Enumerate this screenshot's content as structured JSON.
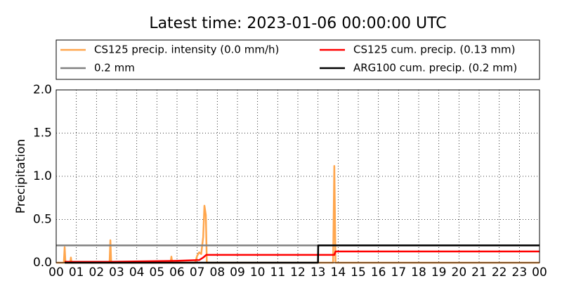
{
  "chart_data": {
    "type": "line",
    "title": "Latest time: 2023-01-06 00:00:00 UTC",
    "y_label": "Precipitation",
    "xlim": [
      0,
      24
    ],
    "xticks": [
      {
        "value": 0,
        "label": "00"
      },
      {
        "value": 1,
        "label": "01"
      },
      {
        "value": 2,
        "label": "02"
      },
      {
        "value": 3,
        "label": "03"
      },
      {
        "value": 4,
        "label": "04"
      },
      {
        "value": 5,
        "label": "05"
      },
      {
        "value": 6,
        "label": "06"
      },
      {
        "value": 7,
        "label": "07"
      },
      {
        "value": 8,
        "label": "08"
      },
      {
        "value": 9,
        "label": "09"
      },
      {
        "value": 10,
        "label": "10"
      },
      {
        "value": 11,
        "label": "11"
      },
      {
        "value": 12,
        "label": "12"
      },
      {
        "value": 13,
        "label": "13"
      },
      {
        "value": 14,
        "label": "14"
      },
      {
        "value": 15,
        "label": "15"
      },
      {
        "value": 16,
        "label": "16"
      },
      {
        "value": 17,
        "label": "17"
      },
      {
        "value": 18,
        "label": "18"
      },
      {
        "value": 19,
        "label": "19"
      },
      {
        "value": 20,
        "label": "20"
      },
      {
        "value": 21,
        "label": "21"
      },
      {
        "value": 22,
        "label": "22"
      },
      {
        "value": 23,
        "label": "23"
      },
      {
        "value": 24,
        "label": "00"
      }
    ],
    "ylim": [
      0,
      2
    ],
    "yticks": [
      {
        "value": 0,
        "label": "0.0"
      },
      {
        "value": 0.5,
        "label": "0.5"
      },
      {
        "value": 1,
        "label": "1.0"
      },
      {
        "value": 1.5,
        "label": "1.5"
      },
      {
        "value": 2,
        "label": "2.0"
      }
    ],
    "grid": true,
    "series": [
      {
        "name": "CS125 precip. intensity (0.0 mm/h)",
        "color": "#ffa64d",
        "x": [
          0,
          0.38,
          0.42,
          0.46,
          0.7,
          0.73,
          0.76,
          2.65,
          2.69,
          2.73,
          5.68,
          5.72,
          5.76,
          6.9,
          7.0,
          7.1,
          7.2,
          7.3,
          7.36,
          7.43,
          7.48,
          13.75,
          13.81,
          13.87,
          24
        ],
        "values": [
          0,
          0,
          0.18,
          0,
          0,
          0.06,
          0,
          0,
          0.26,
          0,
          0,
          0.07,
          0,
          0,
          0.08,
          0.12,
          0.1,
          0.3,
          0.66,
          0.55,
          0,
          0,
          1.12,
          0,
          0
        ]
      },
      {
        "name": "0.2 mm",
        "color": "#808080",
        "x": [
          0,
          24
        ],
        "values": [
          0.2,
          0.2
        ]
      },
      {
        "name": "CS125 cum. precip. (0.13 mm)",
        "color": "#ff0000",
        "x": [
          0.42,
          2.69,
          5.72,
          7.1,
          7.3,
          7.45,
          13.81,
          13.87,
          24
        ],
        "values": [
          0.01,
          0.01,
          0.02,
          0.03,
          0.06,
          0.09,
          0.09,
          0.13,
          0.13
        ]
      },
      {
        "name": "ARG100 cum. precip. (0.2 mm)",
        "color": "#000000",
        "x": [
          0.42,
          13.0,
          13.01,
          24
        ],
        "values": [
          0,
          0,
          0.2,
          0.2
        ]
      }
    ]
  }
}
